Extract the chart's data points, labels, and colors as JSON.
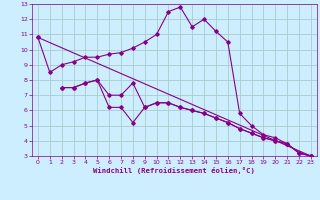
{
  "title": "",
  "xlabel": "Windchill (Refroidissement éolien,°C)",
  "background_color": "#cceeff",
  "grid_color": "#aacccc",
  "line_color": "#880088",
  "xlim": [
    -0.5,
    23.5
  ],
  "ylim": [
    3,
    13
  ],
  "xticks": [
    0,
    1,
    2,
    3,
    4,
    5,
    6,
    7,
    8,
    9,
    10,
    11,
    12,
    13,
    14,
    15,
    16,
    17,
    18,
    19,
    20,
    21,
    22,
    23
  ],
  "yticks": [
    3,
    4,
    5,
    6,
    7,
    8,
    9,
    10,
    11,
    12,
    13
  ],
  "series": [
    {
      "x": [
        0,
        1,
        2,
        3,
        4,
        5,
        6,
        7,
        8,
        9,
        10,
        11,
        12,
        13,
        14,
        15,
        16,
        17,
        18,
        19,
        20,
        21,
        22,
        23
      ],
      "y": [
        10.8,
        8.5,
        9.0,
        9.2,
        9.5,
        9.5,
        9.7,
        9.8,
        10.1,
        10.5,
        11.0,
        12.5,
        12.8,
        11.5,
        12.0,
        11.2,
        10.5,
        5.8,
        5.0,
        4.4,
        4.2,
        3.8,
        3.2,
        3.0
      ]
    },
    {
      "x": [
        2,
        3,
        4,
        5,
        6,
        7,
        8,
        9,
        10,
        11,
        12,
        13,
        14,
        15,
        16,
        17,
        18,
        19,
        20,
        21,
        22,
        23
      ],
      "y": [
        7.5,
        7.5,
        7.8,
        8.0,
        6.2,
        6.2,
        5.2,
        6.2,
        6.5,
        6.5,
        6.2,
        6.0,
        5.8,
        5.5,
        5.2,
        4.8,
        4.5,
        4.2,
        4.0,
        3.8,
        3.2,
        3.0
      ]
    },
    {
      "x": [
        2,
        3,
        4,
        5,
        6,
        7,
        8,
        9,
        10,
        11,
        12,
        13,
        14,
        15,
        16,
        17,
        18,
        19,
        20,
        21,
        22,
        23
      ],
      "y": [
        7.5,
        7.5,
        7.8,
        8.0,
        7.0,
        7.0,
        7.8,
        6.2,
        6.5,
        6.5,
        6.2,
        6.0,
        5.8,
        5.5,
        5.2,
        4.8,
        4.5,
        4.2,
        4.0,
        3.8,
        3.2,
        3.0
      ]
    },
    {
      "x": [
        0,
        23
      ],
      "y": [
        10.8,
        3.0
      ]
    }
  ]
}
